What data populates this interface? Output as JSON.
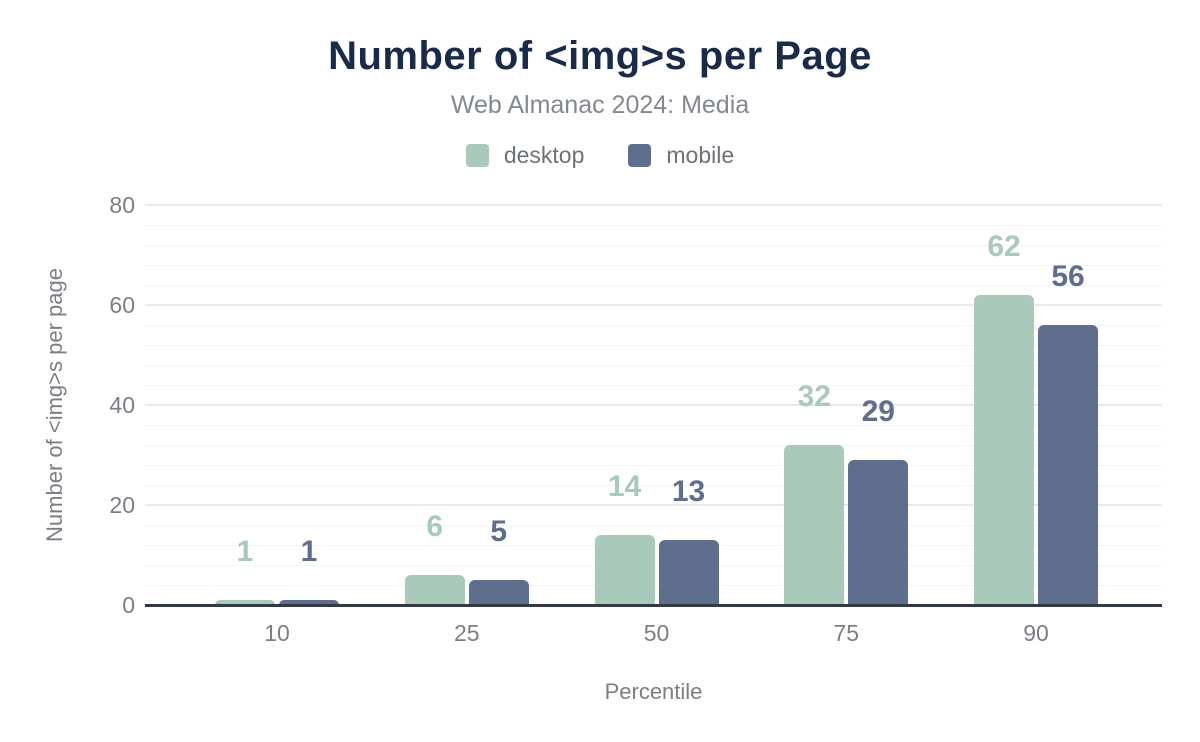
{
  "chart_data": {
    "type": "bar",
    "title": "Number of <img>s per Page",
    "subtitle": "Web Almanac 2024: Media",
    "xlabel": "Percentile",
    "ylabel": "Number of <img>s per page",
    "categories": [
      "10",
      "25",
      "50",
      "75",
      "90"
    ],
    "series": [
      {
        "name": "desktop",
        "color": "#a9cabb",
        "values": [
          1,
          6,
          14,
          32,
          62
        ]
      },
      {
        "name": "mobile",
        "color": "#5e6e8c",
        "values": [
          1,
          5,
          13,
          29,
          56
        ]
      }
    ],
    "ylim": [
      0,
      80
    ],
    "yticks": [
      0,
      20,
      40,
      60,
      80
    ],
    "minor_grid_step": 4,
    "grid": true,
    "legend_position": "top",
    "value_labels_shown": true
  },
  "colors": {
    "title_text": "#1a2b49",
    "muted_text": "#7b7f84",
    "axis_line": "#333a45",
    "major_grid": "#e9e9e9",
    "minor_grid": "#f4f4f4",
    "background": "#ffffff"
  }
}
